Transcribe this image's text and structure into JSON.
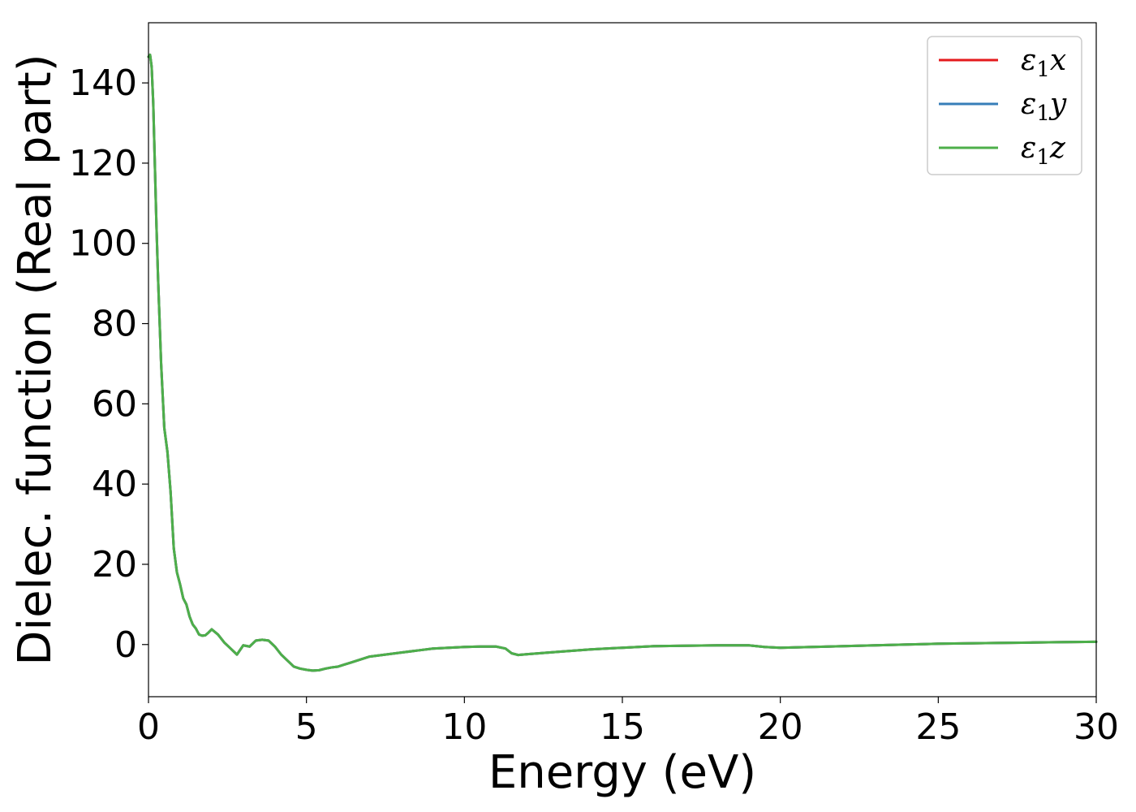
{
  "chart_data": {
    "type": "line",
    "title": "",
    "xlabel": "Energy (eV)",
    "ylabel": "Dielec. function (Real part)",
    "xlim": [
      0,
      30
    ],
    "ylim": [
      -13,
      155
    ],
    "xticks": [
      0,
      5,
      10,
      15,
      20,
      25,
      30
    ],
    "yticks": [
      0,
      20,
      40,
      60,
      80,
      100,
      120,
      140
    ],
    "xtick_labels": [
      "0",
      "5",
      "10",
      "15",
      "20",
      "25",
      "30"
    ],
    "ytick_labels": [
      "0",
      "20",
      "40",
      "60",
      "80",
      "100",
      "120",
      "140"
    ],
    "grid": false,
    "legend_position": "top-right",
    "x": [
      0.0,
      0.05,
      0.1,
      0.15,
      0.2,
      0.25,
      0.3,
      0.4,
      0.5,
      0.6,
      0.7,
      0.8,
      0.9,
      1.0,
      1.1,
      1.2,
      1.3,
      1.4,
      1.5,
      1.6,
      1.7,
      1.8,
      1.9,
      2.0,
      2.2,
      2.4,
      2.6,
      2.8,
      3.0,
      3.2,
      3.4,
      3.6,
      3.8,
      4.0,
      4.2,
      4.4,
      4.6,
      4.8,
      5.0,
      5.2,
      5.4,
      5.6,
      5.8,
      6.0,
      6.2,
      6.4,
      6.6,
      6.8,
      7.0,
      7.5,
      8.0,
      8.5,
      9.0,
      9.5,
      10.0,
      10.5,
      11.0,
      11.3,
      11.5,
      11.7,
      12.0,
      13.0,
      14.0,
      15.0,
      16.0,
      17.0,
      18.0,
      19.0,
      19.5,
      20.0,
      21.0,
      22.0,
      23.0,
      24.0,
      25.0,
      26.0,
      27.0,
      28.0,
      29.0,
      30.0
    ],
    "series": [
      {
        "name": "ε1x",
        "color": "#e41a1c",
        "values": [
          146.5,
          147.0,
          144.0,
          135.0,
          120.0,
          105.0,
          92.0,
          70.0,
          54.0,
          48.0,
          38.0,
          24.0,
          18.0,
          15.0,
          11.5,
          10.0,
          7.0,
          5.0,
          4.0,
          2.5,
          2.2,
          2.3,
          3.0,
          3.8,
          2.5,
          0.5,
          -1.0,
          -2.5,
          -0.2,
          -0.5,
          1.0,
          1.2,
          1.0,
          -0.5,
          -2.5,
          -4.0,
          -5.5,
          -6.0,
          -6.3,
          -6.5,
          -6.4,
          -6.0,
          -5.7,
          -5.5,
          -5.0,
          -4.5,
          -4.0,
          -3.5,
          -3.0,
          -2.5,
          -2.0,
          -1.5,
          -1.0,
          -0.8,
          -0.6,
          -0.5,
          -0.5,
          -1.0,
          -2.2,
          -2.6,
          -2.4,
          -1.8,
          -1.2,
          -0.8,
          -0.4,
          -0.3,
          -0.2,
          -0.2,
          -0.6,
          -0.8,
          -0.6,
          -0.4,
          -0.2,
          0.0,
          0.2,
          0.3,
          0.4,
          0.5,
          0.6,
          0.7
        ]
      },
      {
        "name": "ε1y",
        "color": "#377eb8",
        "values": [
          146.5,
          147.0,
          144.0,
          135.0,
          120.0,
          105.0,
          92.0,
          70.0,
          54.0,
          48.0,
          38.0,
          24.0,
          18.0,
          15.0,
          11.5,
          10.0,
          7.0,
          5.0,
          4.0,
          2.5,
          2.2,
          2.3,
          3.0,
          3.8,
          2.5,
          0.5,
          -1.0,
          -2.5,
          -0.2,
          -0.5,
          1.0,
          1.2,
          1.0,
          -0.5,
          -2.5,
          -4.0,
          -5.5,
          -6.0,
          -6.3,
          -6.5,
          -6.4,
          -6.0,
          -5.7,
          -5.5,
          -5.0,
          -4.5,
          -4.0,
          -3.5,
          -3.0,
          -2.5,
          -2.0,
          -1.5,
          -1.0,
          -0.8,
          -0.6,
          -0.5,
          -0.5,
          -1.0,
          -2.2,
          -2.6,
          -2.4,
          -1.8,
          -1.2,
          -0.8,
          -0.4,
          -0.3,
          -0.2,
          -0.2,
          -0.6,
          -0.8,
          -0.6,
          -0.4,
          -0.2,
          0.0,
          0.2,
          0.3,
          0.4,
          0.5,
          0.6,
          0.7
        ]
      },
      {
        "name": "ε1z",
        "color": "#4daf4a",
        "values": [
          146.5,
          147.0,
          144.0,
          135.0,
          120.0,
          105.0,
          92.0,
          70.0,
          54.0,
          48.0,
          38.0,
          24.0,
          18.0,
          15.0,
          11.5,
          10.0,
          7.0,
          5.0,
          4.0,
          2.5,
          2.2,
          2.3,
          3.0,
          3.8,
          2.5,
          0.5,
          -1.0,
          -2.5,
          -0.2,
          -0.5,
          1.0,
          1.2,
          1.0,
          -0.5,
          -2.5,
          -4.0,
          -5.5,
          -6.0,
          -6.3,
          -6.5,
          -6.4,
          -6.0,
          -5.7,
          -5.5,
          -5.0,
          -4.5,
          -4.0,
          -3.5,
          -3.0,
          -2.5,
          -2.0,
          -1.5,
          -1.0,
          -0.8,
          -0.6,
          -0.5,
          -0.5,
          -1.0,
          -2.2,
          -2.6,
          -2.4,
          -1.8,
          -1.2,
          -0.8,
          -0.4,
          -0.3,
          -0.2,
          -0.2,
          -0.6,
          -0.8,
          -0.6,
          -0.4,
          -0.2,
          0.0,
          0.2,
          0.3,
          0.4,
          0.5,
          0.6,
          0.7
        ]
      }
    ],
    "legend": [
      {
        "symbol": "ε",
        "sub": "1",
        "var": "x",
        "color": "#e41a1c"
      },
      {
        "symbol": "ε",
        "sub": "1",
        "var": "y",
        "color": "#377eb8"
      },
      {
        "symbol": "ε",
        "sub": "1",
        "var": "z",
        "color": "#4daf4a"
      }
    ]
  }
}
